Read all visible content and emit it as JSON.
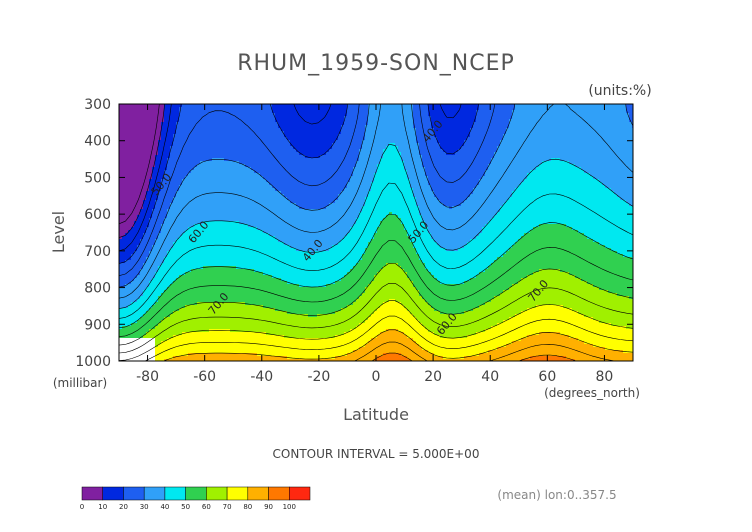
{
  "chart_data": {
    "type": "heatmap",
    "title": "RHUM_1959-SON_NCEP",
    "units_label": "(units:%)",
    "xlabel": "Latitude",
    "x_units_label": "(degrees_north)",
    "ylabel": "Level",
    "y_units_label": "(millibar)",
    "xlim": [
      -90,
      90
    ],
    "ylim": [
      1000,
      300
    ],
    "x_ticks": [
      -80,
      -60,
      -40,
      -20,
      0,
      20,
      40,
      60,
      80
    ],
    "x_tick_labels": [
      "-80",
      "-60",
      "-40",
      "-20",
      "0",
      "20",
      "40",
      "60",
      "80"
    ],
    "y_ticks": [
      300,
      400,
      500,
      600,
      700,
      800,
      900,
      1000
    ],
    "y_tick_labels": [
      "300",
      "400",
      "500",
      "600",
      "700",
      "800",
      "900",
      "1000"
    ],
    "contour_interval_label": "CONTOUR INTERVAL = 5.000E+00",
    "footnote": "(mean) lon:0..357.5",
    "colorbar": {
      "levels": [
        0,
        10,
        20,
        30,
        40,
        50,
        60,
        70,
        80,
        90,
        100
      ],
      "level_labels": [
        "0",
        "10",
        "20",
        "30",
        "40",
        "50",
        "60",
        "70",
        "80",
        "90",
        "100"
      ],
      "colors": [
        "#8020a0",
        "#0028e0",
        "#1e5ff0",
        "#30a0f8",
        "#00e8f0",
        "#30d050",
        "#a0f000",
        "#ffff00",
        "#ffb000",
        "#ff7800",
        "#ff2810"
      ]
    },
    "contour_labels": [
      {
        "text": "50.0",
        "lat": -75,
        "lev": 520
      },
      {
        "text": "60.0",
        "lat": -62,
        "lev": 650
      },
      {
        "text": "70.0",
        "lat": -55,
        "lev": 845
      },
      {
        "text": "40.0",
        "lat": -22,
        "lev": 700
      },
      {
        "text": "40.0",
        "lat": 20,
        "lev": 375
      },
      {
        "text": "50.0",
        "lat": 15,
        "lev": 650
      },
      {
        "text": "60.0",
        "lat": 25,
        "lev": 900
      },
      {
        "text": "70.0",
        "lat": 57,
        "lev": 810
      }
    ]
  }
}
